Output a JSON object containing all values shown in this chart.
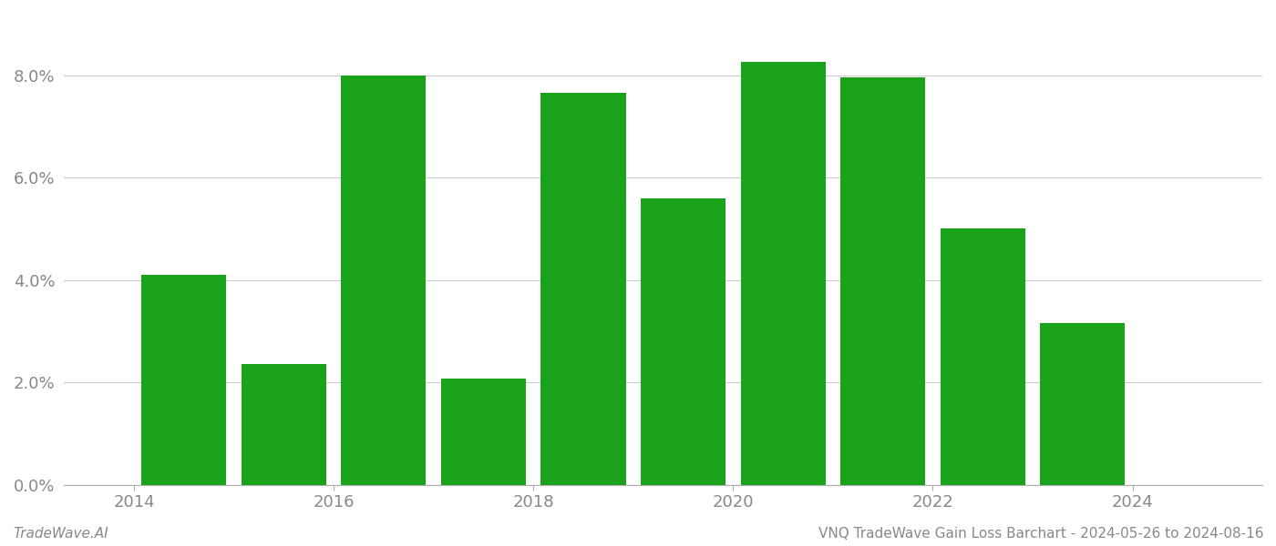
{
  "years": [
    2014,
    2015,
    2016,
    2017,
    2018,
    2019,
    2020,
    2021,
    2022,
    2023
  ],
  "values": [
    0.041,
    0.0235,
    0.08,
    0.0207,
    0.0765,
    0.056,
    0.0825,
    0.0795,
    0.05,
    0.0315
  ],
  "bar_color": "#1aa21a",
  "background_color": "#ffffff",
  "ylim": [
    0,
    0.092
  ],
  "yticks": [
    0.0,
    0.02,
    0.04,
    0.06,
    0.08
  ],
  "xtick_positions": [
    2013.5,
    2015.5,
    2017.5,
    2019.5,
    2021.5,
    2023.5
  ],
  "xtick_labels": [
    "2014",
    "2016",
    "2018",
    "2020",
    "2022",
    "2024"
  ],
  "footer_left": "TradeWave.AI",
  "footer_right": "VNQ TradeWave Gain Loss Barchart - 2024-05-26 to 2024-08-16",
  "footer_fontsize": 11,
  "tick_label_color": "#888888",
  "grid_color": "#cccccc",
  "bar_width": 0.85
}
